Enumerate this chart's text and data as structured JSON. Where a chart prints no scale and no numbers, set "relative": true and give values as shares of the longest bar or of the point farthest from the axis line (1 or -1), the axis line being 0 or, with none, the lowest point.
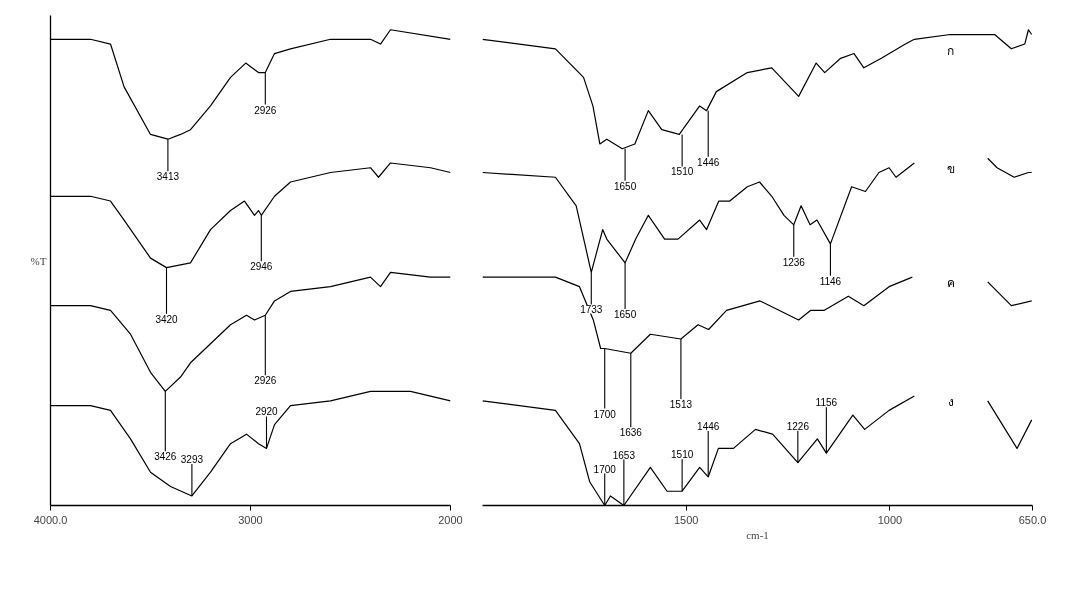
{
  "chart_data": [
    {
      "type": "line",
      "relative": true,
      "ylabel": "%T",
      "xlim": [
        4000,
        2000
      ],
      "xticks": [
        {
          "value": 4000,
          "label": "4000.0"
        },
        3000,
        2000
      ],
      "series": [
        {
          "color": "#000000",
          "x": [
            4000,
            3800,
            3700,
            3632,
            3500,
            3413,
            3350,
            3300,
            3200,
            3100,
            3024,
            2960,
            2926,
            2880,
            2800,
            2600,
            2400,
            2350,
            2300,
            2000
          ],
          "values": [
            0.98,
            0.98,
            0.97,
            0.88,
            0.78,
            0.77,
            0.78,
            0.79,
            0.84,
            0.9,
            0.93,
            0.91,
            0.91,
            0.95,
            0.96,
            0.98,
            0.98,
            0.97,
            1.0,
            0.98
          ]
        },
        {
          "color": "#000000",
          "x": [
            4000,
            3800,
            3700,
            3632,
            3500,
            3420,
            3300,
            3200,
            3100,
            3030,
            2980,
            2960,
            2946,
            2880,
            2800,
            2600,
            2400,
            2360,
            2300,
            2100,
            2000
          ],
          "values": [
            0.65,
            0.65,
            0.64,
            0.6,
            0.52,
            0.5,
            0.51,
            0.58,
            0.62,
            0.64,
            0.61,
            0.62,
            0.61,
            0.65,
            0.68,
            0.7,
            0.71,
            0.69,
            0.72,
            0.71,
            0.7
          ]
        },
        {
          "color": "#000000",
          "x": [
            4000,
            3800,
            3700,
            3600,
            3500,
            3426,
            3350,
            3300,
            3200,
            3100,
            3020,
            2980,
            2926,
            2880,
            2800,
            2600,
            2400,
            2350,
            2300,
            2100,
            2000
          ],
          "values": [
            0.42,
            0.42,
            0.41,
            0.36,
            0.28,
            0.24,
            0.27,
            0.3,
            0.34,
            0.38,
            0.4,
            0.39,
            0.4,
            0.43,
            0.45,
            0.46,
            0.48,
            0.46,
            0.49,
            0.48,
            0.48
          ]
        },
        {
          "color": "#000000",
          "x": [
            4000,
            3800,
            3700,
            3600,
            3500,
            3400,
            3293,
            3200,
            3100,
            3020,
            2960,
            2920,
            2880,
            2800,
            2600,
            2400,
            2200,
            2000
          ],
          "values": [
            0.21,
            0.21,
            0.2,
            0.14,
            0.07,
            0.04,
            0.02,
            0.07,
            0.13,
            0.15,
            0.13,
            0.12,
            0.17,
            0.21,
            0.22,
            0.24,
            0.24,
            0.22
          ]
        }
      ],
      "annotations": [
        {
          "text": "3413",
          "x": 3413,
          "y": 0.77
        },
        {
          "text": "2926",
          "x": 2926,
          "y": 0.91
        },
        {
          "text": "3420",
          "x": 3420,
          "y": 0.5
        },
        {
          "text": "2946",
          "x": 2946,
          "y": 0.61
        },
        {
          "text": "3426",
          "x": 3426,
          "y": 0.24
        },
        {
          "text": "2926",
          "x": 2926,
          "y": 0.4
        },
        {
          "text": "3293",
          "x": 3293,
          "y": 0.02
        },
        {
          "text": "2920",
          "x": 2920,
          "y": 0.12
        }
      ]
    },
    {
      "type": "line",
      "relative": true,
      "xlabel": "cm-1",
      "xlim": [
        2000,
        650
      ],
      "xticks": [
        1500,
        1000,
        {
          "value": 650,
          "label": "650.0"
        }
      ],
      "series": [
        {
          "name": "ก",
          "color": "#000000",
          "x": [
            2000,
            1821,
            1752,
            1729,
            1712,
            1695,
            1657,
            1626,
            1593,
            1560,
            1517,
            1467,
            1450,
            1426,
            1350,
            1290,
            1224,
            1181,
            1160,
            1121,
            1088,
            1064,
            1021,
            962,
            940,
            852,
            786,
            743,
            702,
            669,
            660,
            652
          ],
          "values": [
            0.98,
            0.96,
            0.9,
            0.84,
            0.76,
            0.77,
            0.75,
            0.76,
            0.83,
            0.79,
            0.78,
            0.84,
            0.83,
            0.87,
            0.91,
            0.92,
            0.86,
            0.93,
            0.91,
            0.94,
            0.95,
            0.92,
            0.94,
            0.97,
            0.98,
            0.99,
            0.99,
            0.99,
            0.96,
            0.97,
            1.0,
            0.99
          ]
        },
        {
          "name": "ข",
          "color": "#000000",
          "x": [
            2000,
            1821,
            1770,
            1733,
            1705,
            1695,
            1650,
            1624,
            1593,
            1553,
            1520,
            1467,
            1450,
            1420,
            1393,
            1350,
            1320,
            1290,
            1260,
            1236,
            1218,
            1196,
            1179,
            1146,
            1094,
            1060,
            1027,
            1002,
            985,
            940,
            850,
            760,
            737,
            695,
            660,
            652
          ],
          "values": [
            0.7,
            0.69,
            0.63,
            0.49,
            0.58,
            0.56,
            0.51,
            0.56,
            0.61,
            0.56,
            0.56,
            0.6,
            0.58,
            0.64,
            0.64,
            0.67,
            0.68,
            0.65,
            0.61,
            0.59,
            0.63,
            0.59,
            0.6,
            0.55,
            0.67,
            0.66,
            0.7,
            0.71,
            0.69,
            0.72,
            null,
            0.73,
            0.71,
            0.69,
            0.7,
            0.7
          ]
        },
        {
          "name": "ค",
          "color": "#000000",
          "x": [
            2000,
            1821,
            1762,
            1728,
            1710,
            1700,
            1636,
            1588,
            1513,
            1471,
            1445,
            1401,
            1319,
            1224,
            1195,
            1162,
            1102,
            1064,
            1002,
            945,
            850,
            760,
            702,
            652
          ],
          "values": [
            0.48,
            0.48,
            0.46,
            0.39,
            0.33,
            0.33,
            0.32,
            0.36,
            0.35,
            0.38,
            0.37,
            0.41,
            0.43,
            0.39,
            0.41,
            0.41,
            0.44,
            0.42,
            0.46,
            0.48,
            null,
            0.47,
            0.42,
            0.43
          ]
        },
        {
          "name": "ง",
          "color": "#000000",
          "x": [
            2000,
            1821,
            1762,
            1737,
            1700,
            1686,
            1653,
            1588,
            1547,
            1510,
            1467,
            1446,
            1421,
            1384,
            1330,
            1288,
            1226,
            1178,
            1156,
            1091,
            1062,
            1002,
            940,
            850,
            760,
            688,
            652
          ],
          "values": [
            0.22,
            0.2,
            0.13,
            0.05,
            0.0,
            0.02,
            0.0,
            0.08,
            0.03,
            0.03,
            0.08,
            0.06,
            0.12,
            0.12,
            0.16,
            0.15,
            0.09,
            0.14,
            0.11,
            0.19,
            0.16,
            0.2,
            0.23,
            null,
            0.22,
            0.12,
            0.18
          ]
        }
      ],
      "annotations": [
        {
          "text": "1650",
          "x": 1650,
          "y": 0.75
        },
        {
          "text": "1510",
          "x": 1510,
          "y": 0.78
        },
        {
          "text": "1446",
          "x": 1446,
          "y": 0.83
        },
        {
          "text": "1733",
          "x": 1733,
          "y": 0.49
        },
        {
          "text": "1650",
          "x": 1650,
          "y": 0.51
        },
        {
          "text": "1236",
          "x": 1236,
          "y": 0.59
        },
        {
          "text": "1146",
          "x": 1146,
          "y": 0.55
        },
        {
          "text": "1700",
          "x": 1700,
          "y": 0.33
        },
        {
          "text": "1636",
          "x": 1636,
          "y": 0.32
        },
        {
          "text": "1513",
          "x": 1513,
          "y": 0.35
        },
        {
          "text": "1700",
          "x": 1700,
          "y": 0.0
        },
        {
          "text": "1653",
          "x": 1653,
          "y": 0.0
        },
        {
          "text": "1510",
          "x": 1510,
          "y": 0.03
        },
        {
          "text": "1446",
          "x": 1446,
          "y": 0.06
        },
        {
          "text": "1226",
          "x": 1226,
          "y": 0.09
        },
        {
          "text": "1156",
          "x": 1156,
          "y": 0.11
        }
      ]
    }
  ]
}
